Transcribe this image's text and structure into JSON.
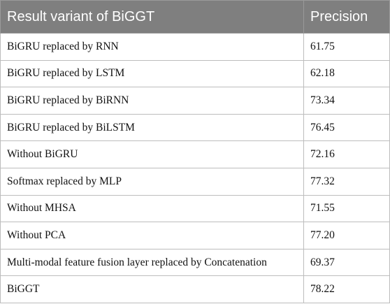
{
  "table": {
    "headers": [
      "Result variant of BiGGT",
      "Precision"
    ],
    "rows": [
      {
        "variant": "BiGRU replaced by RNN",
        "precision": "61.75"
      },
      {
        "variant": "BiGRU replaced by LSTM",
        "precision": "62.18"
      },
      {
        "variant": "BiGRU replaced by BiRNN",
        "precision": "73.34"
      },
      {
        "variant": "BiGRU replaced by BiLSTM",
        "precision": "76.45"
      },
      {
        "variant": "Without BiGRU",
        "precision": "72.16"
      },
      {
        "variant": "Softmax replaced by MLP",
        "precision": "77.32"
      },
      {
        "variant": "Without MHSA",
        "precision": "71.55"
      },
      {
        "variant": "Without PCA",
        "precision": "77.20"
      },
      {
        "variant": "Multi-modal feature fusion layer replaced by Concatenation",
        "precision": "69.37"
      },
      {
        "variant": "BiGGT",
        "precision": "78.22"
      }
    ]
  },
  "colors": {
    "header_bg": "#7f7f7f",
    "header_text": "#ffffff",
    "border": "#bdbdbd"
  }
}
